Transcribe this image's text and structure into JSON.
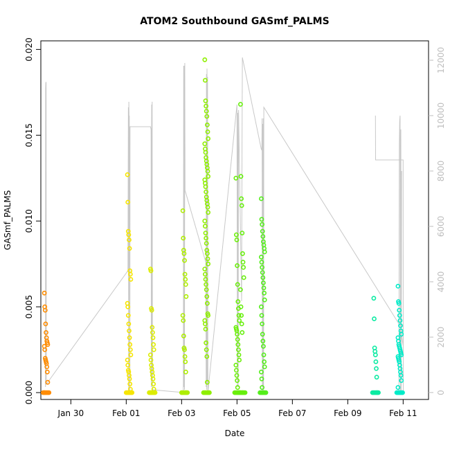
{
  "chart_data": {
    "type": "scatter",
    "title": "ATOM2 Southbound GASmf_PALMS",
    "xlabel": "Date",
    "ylabel": "GASmf_PALMS",
    "xlim": [
      "2017-01-28T22:00",
      "2017-02-11T22:00"
    ],
    "ylim": [
      -0.0004,
      0.0205
    ],
    "y2lim": [
      -250,
      12700
    ],
    "x_ticks": [
      {
        "date": "2017-01-30",
        "label": "Jan 30"
      },
      {
        "date": "2017-02-01",
        "label": "Feb 01"
      },
      {
        "date": "2017-02-03",
        "label": "Feb 03"
      },
      {
        "date": "2017-02-05",
        "label": "Feb 05"
      },
      {
        "date": "2017-02-07",
        "label": "Feb 07"
      },
      {
        "date": "2017-02-09",
        "label": "Feb 09"
      },
      {
        "date": "2017-02-11",
        "label": "Feb 11"
      }
    ],
    "y_ticks": [
      {
        "value": 0.0,
        "label": "0.000"
      },
      {
        "value": 0.005,
        "label": "0.005"
      },
      {
        "value": 0.01,
        "label": "0.010"
      },
      {
        "value": 0.015,
        "label": "0.015"
      },
      {
        "value": 0.02,
        "label": "0.020"
      }
    ],
    "y2_ticks": [
      {
        "value": 0,
        "label": "0"
      },
      {
        "value": 2000,
        "label": "2000"
      },
      {
        "value": 4000,
        "label": "4000"
      },
      {
        "value": 6000,
        "label": "6000"
      },
      {
        "value": 8000,
        "label": "8000"
      },
      {
        "value": 10000,
        "label": "10000"
      },
      {
        "value": 12000,
        "label": "12000"
      }
    ],
    "grid": false,
    "marker": "open-circle",
    "point_color_scale": "time (orange → yellow → green → cyan)",
    "altitude_line_color": "#c8c8c8",
    "flight_legs": [
      {
        "date": "2017-01-29T02:30",
        "values": [
          0.0058,
          0.005,
          0.0048,
          0.004,
          0.0035,
          0.0032,
          0.003,
          0.0029,
          0.0028,
          0.0027,
          0.0025,
          0.002,
          0.0019,
          0.0018,
          0.0017,
          0.0015,
          0.0012,
          0.0006,
          0.0
        ]
      },
      {
        "date": "2017-02-01T02:30",
        "values": [
          0.0127,
          0.0111,
          0.0094,
          0.0092,
          0.0089,
          0.0084,
          0.0071,
          0.0069,
          0.0066,
          0.0052,
          0.005,
          0.0045,
          0.004,
          0.0036,
          0.0032,
          0.0028,
          0.0025,
          0.0022,
          0.0019,
          0.0016,
          0.0013,
          0.0012,
          0.001,
          0.0008,
          0.0005,
          0.0002,
          0.0
        ]
      },
      {
        "date": "2017-02-01T22:30",
        "values": [
          0.0072,
          0.0071,
          0.0049,
          0.0048,
          0.0038,
          0.0035,
          0.0032,
          0.0028,
          0.0025,
          0.0022,
          0.0019,
          0.0016,
          0.0014,
          0.0012,
          0.001,
          0.0008,
          0.0005,
          0.0002,
          0.0
        ]
      },
      {
        "date": "2017-02-03T02:30",
        "values": [
          0.0106,
          0.009,
          0.0083,
          0.0081,
          0.0077,
          0.0069,
          0.0066,
          0.0063,
          0.0056,
          0.0045,
          0.0042,
          0.0033,
          0.0026,
          0.0025,
          0.0021,
          0.0018,
          0.0012,
          0.0
        ]
      },
      {
        "date": "2017-02-03T21:30",
        "values": [
          0.0194,
          0.0182,
          0.017,
          0.0167,
          0.0164,
          0.0161,
          0.0156,
          0.0152,
          0.0148,
          0.0145,
          0.0142,
          0.014,
          0.0137,
          0.0135,
          0.0133,
          0.0131,
          0.0129,
          0.0126,
          0.0124,
          0.0122,
          0.012,
          0.0117,
          0.0114,
          0.0112,
          0.011,
          0.0108,
          0.0105,
          0.01,
          0.0097,
          0.0093,
          0.009,
          0.0087,
          0.0083,
          0.0081,
          0.0078,
          0.0075,
          0.0072,
          0.0069,
          0.0066,
          0.0063,
          0.006,
          0.0056,
          0.0052,
          0.0046,
          0.0045,
          0.0042,
          0.004,
          0.0037,
          0.0029,
          0.0025,
          0.0021,
          0.0006,
          0.0
        ]
      },
      {
        "date": "2017-02-05T00:30",
        "values": [
          0.0125,
          0.0092,
          0.0089,
          0.0074,
          0.0063,
          0.0053,
          0.0049,
          0.0045,
          0.0042,
          0.0038,
          0.0037,
          0.0036,
          0.0034,
          0.0031,
          0.0028,
          0.0025,
          0.0022,
          0.0019,
          0.0016,
          0.0013,
          0.001,
          0.0007,
          0.0003,
          0.0
        ]
      },
      {
        "date": "2017-02-05T04:30",
        "values": [
          0.0168,
          0.0126,
          0.0113,
          0.0109,
          0.0093,
          0.0081,
          0.0076,
          0.0073,
          0.0067,
          0.006,
          0.005,
          0.0045,
          0.004,
          0.0035,
          0.0
        ]
      },
      {
        "date": "2017-02-05T22:30",
        "values": [
          0.0113,
          0.0101,
          0.0098,
          0.0094,
          0.0091,
          0.0088,
          0.0086,
          0.0084,
          0.0082,
          0.0079,
          0.0076,
          0.0073,
          0.007,
          0.0067,
          0.0064,
          0.0061,
          0.0058,
          0.0054,
          0.005,
          0.0045,
          0.004,
          0.0034,
          0.003,
          0.0027,
          0.0022,
          0.0018,
          0.0015,
          0.0012,
          0.0008,
          0.0003,
          0.0
        ]
      },
      {
        "date": "2017-02-10T00:00",
        "values": [
          0.0055,
          0.0043,
          0.0026,
          0.0024,
          0.0022,
          0.0018,
          0.0014,
          0.0009,
          0.0
        ]
      },
      {
        "date": "2017-02-10T21:00",
        "values": [
          0.0062,
          0.0053,
          0.0052,
          0.0048,
          0.0045,
          0.0042,
          0.0039,
          0.0036,
          0.0034,
          0.0032,
          0.003,
          0.0028,
          0.0027,
          0.0026,
          0.0025,
          0.0024,
          0.0023,
          0.0022,
          0.0021,
          0.002,
          0.0019,
          0.0018,
          0.0016,
          0.0014,
          0.0012,
          0.001,
          0.0007,
          0.0003,
          0.0
        ]
      }
    ],
    "altitude_series": {
      "name": "",
      "points": [
        [
          "2017-01-29T02:00",
          200
        ],
        [
          "2017-01-29T02:10",
          11000
        ],
        [
          "2017-01-29T02:20",
          11200
        ],
        [
          "2017-01-29T02:35",
          11200
        ],
        [
          "2017-01-29T02:45",
          300
        ],
        [
          "2017-02-01T01:30",
          4400
        ],
        [
          "2017-02-01T01:50",
          10300
        ],
        [
          "2017-02-01T02:05",
          0
        ],
        [
          "2017-02-01T02:15",
          10500
        ],
        [
          "2017-02-01T02:25",
          9900
        ],
        [
          "2017-02-01T02:40",
          10000
        ],
        [
          "2017-02-01T02:55",
          200
        ],
        [
          "2017-02-01T03:10",
          0
        ],
        [
          "2017-02-01T03:15",
          9600
        ],
        [
          "2017-02-01T21:00",
          9600
        ],
        [
          "2017-02-01T21:30",
          9500
        ],
        [
          "2017-02-01T21:45",
          200
        ],
        [
          "2017-02-01T22:00",
          10400
        ],
        [
          "2017-02-01T22:15",
          400
        ],
        [
          "2017-02-01T22:30",
          10500
        ],
        [
          "2017-02-01T22:45",
          100
        ],
        [
          "2017-02-03T01:30",
          0
        ],
        [
          "2017-02-03T01:45",
          11800
        ],
        [
          "2017-02-03T02:00",
          200
        ],
        [
          "2017-02-03T02:15",
          11800
        ],
        [
          "2017-02-03T02:30",
          100
        ],
        [
          "2017-02-03T02:45",
          11900
        ],
        [
          "2017-02-03T03:00",
          7300
        ],
        [
          "2017-02-03T21:00",
          4700
        ],
        [
          "2017-02-03T21:15",
          200
        ],
        [
          "2017-02-03T21:30",
          11500
        ],
        [
          "2017-02-03T21:45",
          100
        ],
        [
          "2017-02-03T22:00",
          11700
        ],
        [
          "2017-02-03T22:15",
          300
        ],
        [
          "2017-02-03T22:30",
          11400
        ],
        [
          "2017-02-03T22:45",
          0
        ],
        [
          "2017-02-05T00:00",
          10400
        ],
        [
          "2017-02-05T00:20",
          200
        ],
        [
          "2017-02-05T00:40",
          10100
        ],
        [
          "2017-02-05T01:00",
          200
        ],
        [
          "2017-02-05T01:20",
          10200
        ],
        [
          "2017-02-05T04:00",
          3300
        ],
        [
          "2017-02-05T04:20",
          8900
        ],
        [
          "2017-02-05T04:40",
          12100
        ],
        [
          "2017-02-05T21:00",
          8800
        ],
        [
          "2017-02-05T21:30",
          8750
        ],
        [
          "2017-02-05T21:45",
          9900
        ],
        [
          "2017-02-05T22:00",
          0
        ],
        [
          "2017-02-05T22:15",
          9700
        ],
        [
          "2017-02-05T22:30",
          200
        ],
        [
          "2017-02-05T22:45",
          9900
        ],
        [
          "2017-02-05T23:00",
          0
        ],
        [
          "2017-02-05T23:15",
          10300
        ],
        [
          "2017-02-10T21:30",
          2400
        ],
        [
          "2017-02-11T00:00",
          1700
        ]
      ]
    },
    "altitude_series_2": {
      "name": "",
      "points": [
        [
          "2017-02-10T00:00",
          10000
        ],
        [
          "2017-02-10T00:05",
          8400
        ],
        [
          "2017-02-11T00:00",
          8400
        ],
        [
          "2017-02-11T00:05",
          0
        ],
        [
          "2017-02-10T20:20",
          0
        ],
        [
          "2017-02-10T20:40",
          8900
        ],
        [
          "2017-02-10T21:00",
          9800
        ],
        [
          "2017-02-10T21:20",
          10000
        ],
        [
          "2017-02-10T21:40",
          0
        ],
        [
          "2017-02-10T22:00",
          9500
        ],
        [
          "2017-02-10T22:20",
          0
        ],
        [
          "2017-02-10T22:40",
          8000
        ]
      ]
    }
  }
}
